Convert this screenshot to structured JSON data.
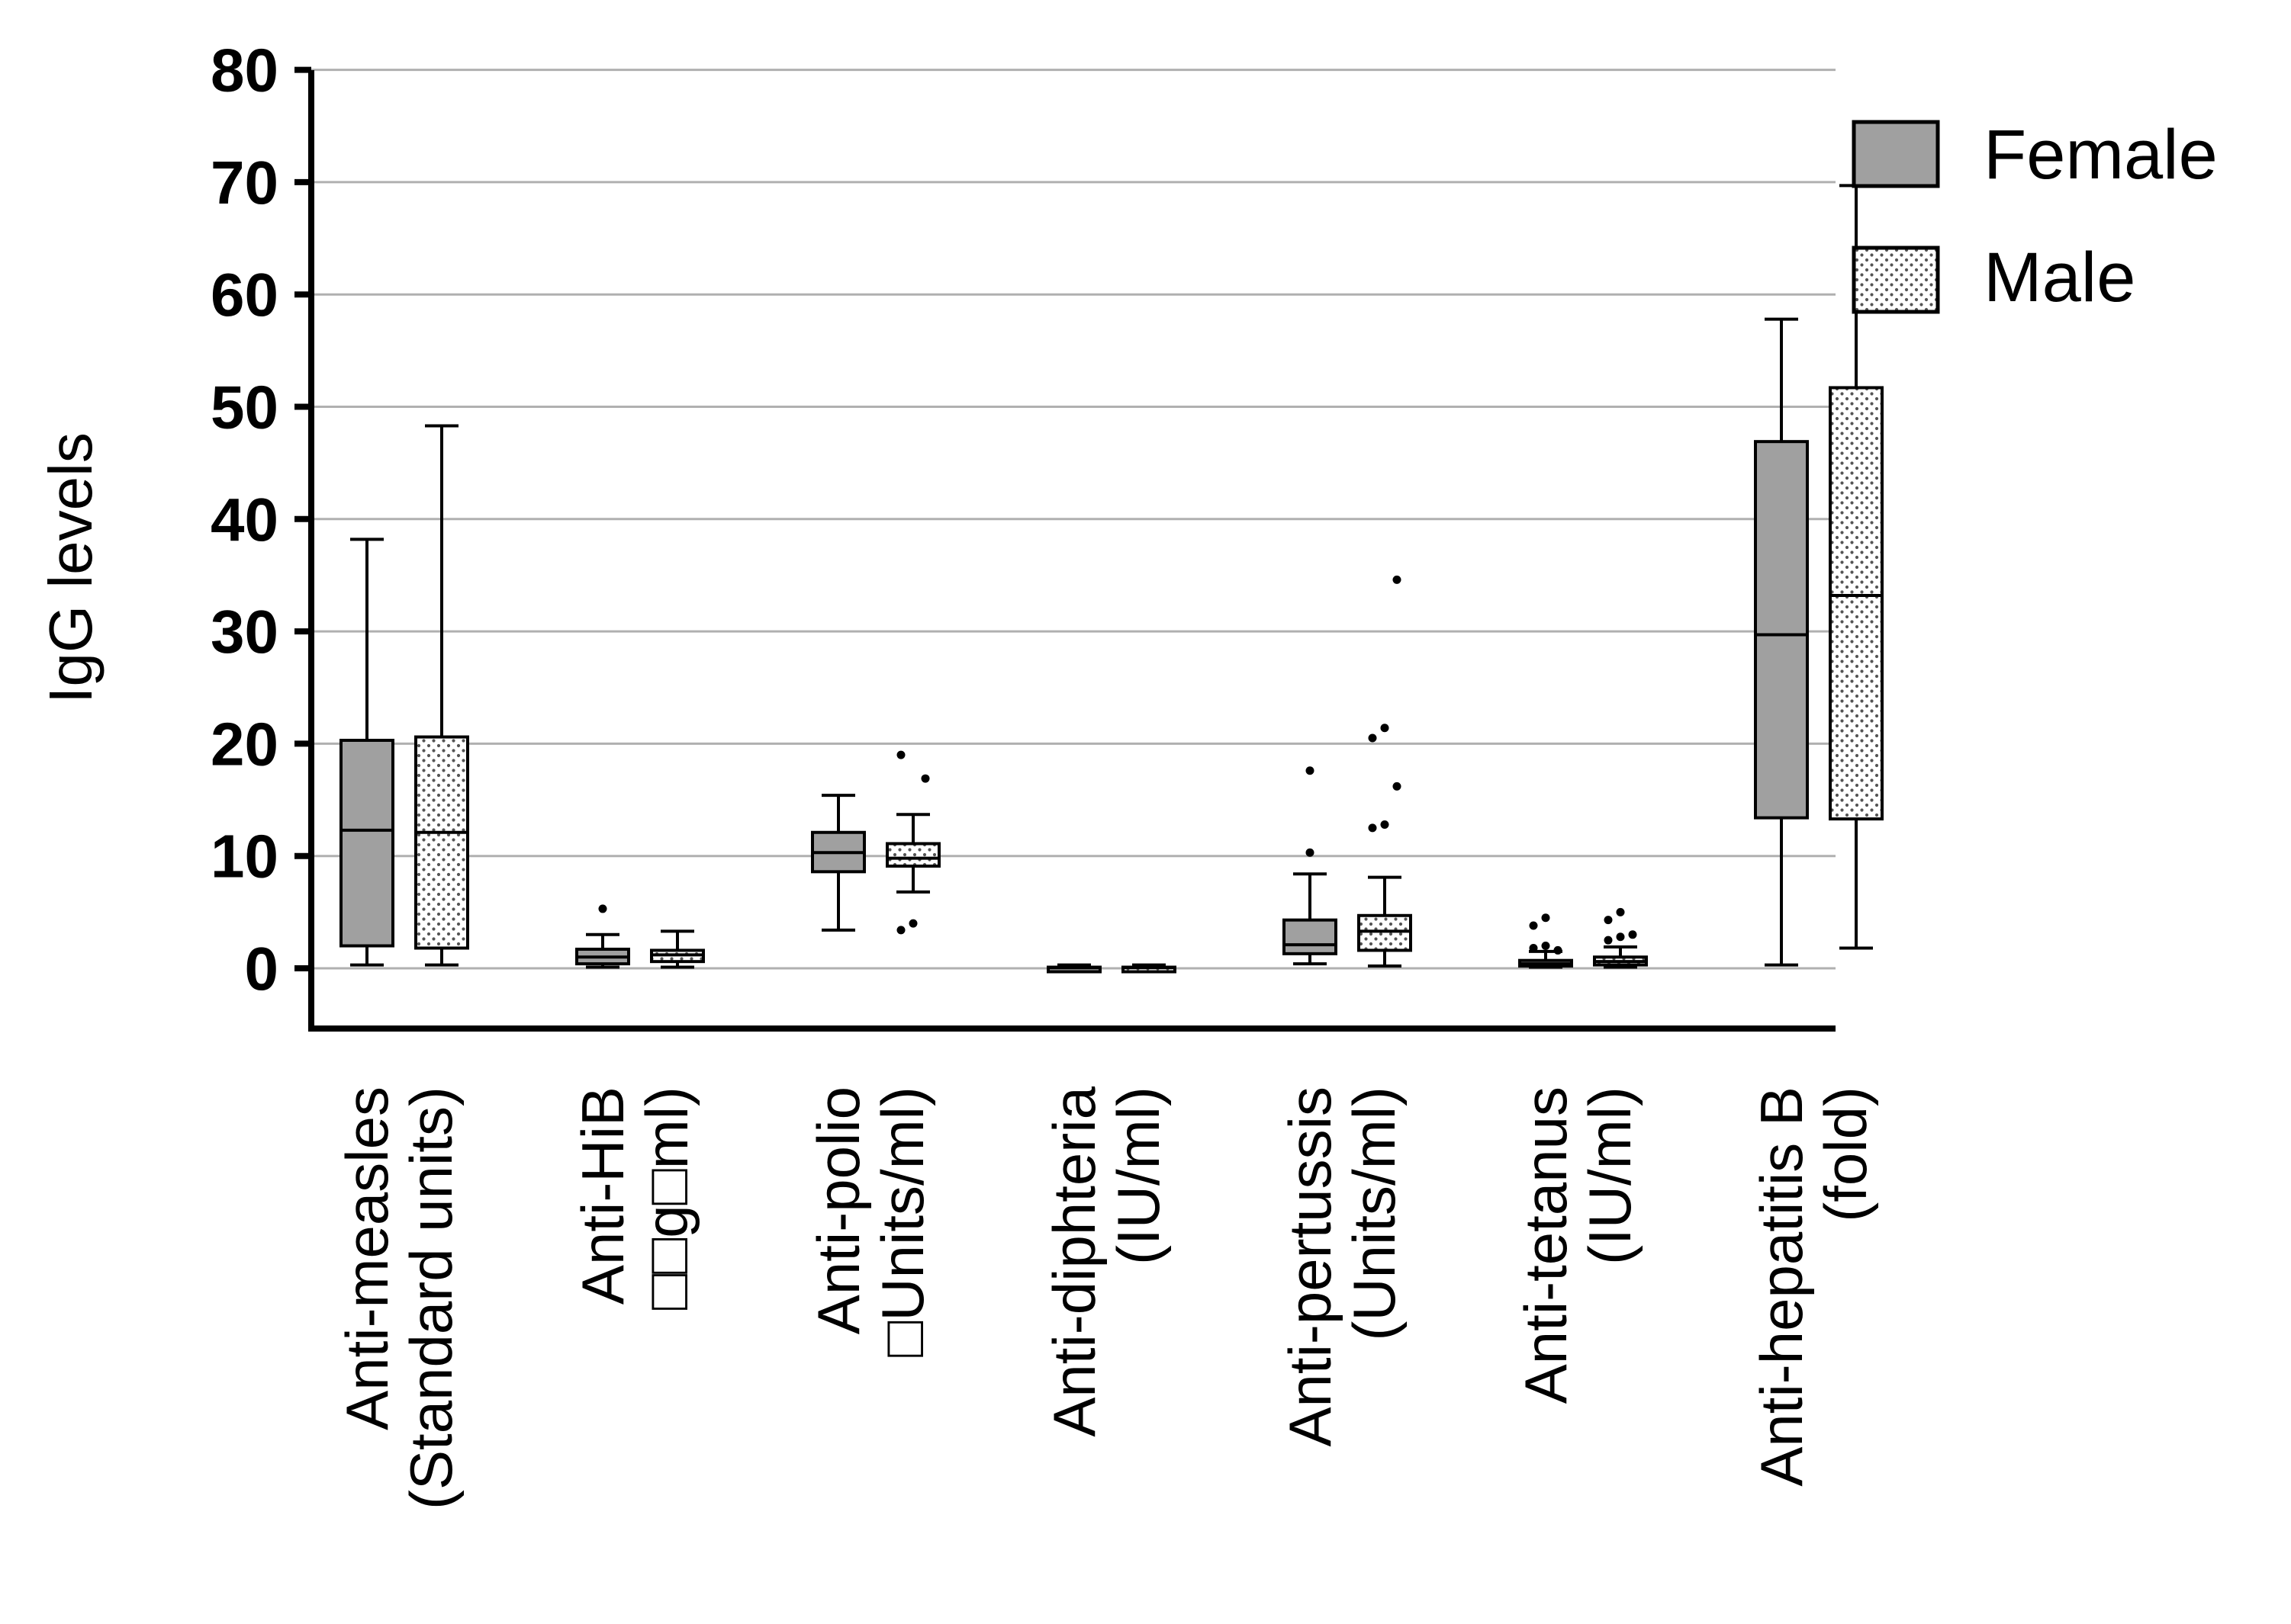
{
  "chart_data": {
    "type": "box",
    "ylabel": "IgG levels",
    "ylim": [
      -5,
      80
    ],
    "yticks": [
      0,
      10,
      20,
      30,
      40,
      50,
      60,
      70,
      80
    ],
    "ytick_labels": [
      "0",
      "10",
      "20",
      "30",
      "40",
      "50",
      "60",
      "70",
      "80"
    ],
    "grid": true,
    "legend_position": "top-right",
    "colors": {
      "female": "#a0a0a0",
      "male_fill": "#ffffff",
      "male_dots": "#555555",
      "axis": "#000000",
      "grid": "#b0b0b0"
    },
    "categories": [
      {
        "line1": "Anti-measles",
        "line2": "(Standard units)"
      },
      {
        "line1": "Anti-HiB",
        "line2": "□□g□ml)"
      },
      {
        "line1": "Anti-polio",
        "line2": "□Units/ml)"
      },
      {
        "line1": "Anti-diphteria",
        "line2": "(IU/ml)"
      },
      {
        "line1": "Anti-pertussis",
        "line2": "(Units/ml)"
      },
      {
        "line1": "Anti-tetanus",
        "line2": "(IU/ml)"
      },
      {
        "line1": "Anti-hepatitis B",
        "line2": "(fold)"
      }
    ],
    "series": [
      {
        "name": "Female",
        "boxes": [
          {
            "min": 0.3,
            "q1": 2.0,
            "median": 12.3,
            "q3": 20.3,
            "max": 38.2,
            "outliers": []
          },
          {
            "min": 0.1,
            "q1": 0.4,
            "median": 1.0,
            "q3": 1.7,
            "max": 3.0,
            "outliers": [
              5.3
            ]
          },
          {
            "min": 3.4,
            "q1": 8.6,
            "median": 10.3,
            "q3": 12.1,
            "max": 15.4,
            "outliers": []
          },
          {
            "min": 0.0,
            "q1": 0.0,
            "median": 0.05,
            "q3": 0.1,
            "max": 0.3,
            "outliers": []
          },
          {
            "min": 0.4,
            "q1": 1.3,
            "median": 2.1,
            "q3": 4.3,
            "max": 8.4,
            "outliers": [
              10.3,
              17.6
            ]
          },
          {
            "min": 0.1,
            "q1": 0.2,
            "median": 0.4,
            "q3": 0.7,
            "max": 1.5,
            "outliers": [
              1.8,
              2.0,
              1.6,
              3.8,
              4.5
            ]
          },
          {
            "min": 0.3,
            "q1": 13.4,
            "median": 29.7,
            "q3": 46.9,
            "max": 57.8,
            "outliers": []
          }
        ]
      },
      {
        "name": "Male",
        "boxes": [
          {
            "min": 0.3,
            "q1": 1.8,
            "median": 12.1,
            "q3": 20.6,
            "max": 48.3,
            "outliers": []
          },
          {
            "min": 0.1,
            "q1": 0.6,
            "median": 1.2,
            "q3": 1.6,
            "max": 3.3,
            "outliers": []
          },
          {
            "min": 6.8,
            "q1": 9.1,
            "median": 9.8,
            "q3": 11.1,
            "max": 13.7,
            "outliers": [
              3.4,
              4.0,
              16.9,
              19.0
            ]
          },
          {
            "min": 0.0,
            "q1": 0.0,
            "median": 0.05,
            "q3": 0.1,
            "max": 0.3,
            "outliers": []
          },
          {
            "min": 0.2,
            "q1": 1.6,
            "median": 3.3,
            "q3": 4.7,
            "max": 8.1,
            "outliers": [
              12.5,
              12.8,
              16.2,
              20.5,
              21.4,
              34.6
            ]
          },
          {
            "min": 0.1,
            "q1": 0.3,
            "median": 0.6,
            "q3": 1.0,
            "max": 1.9,
            "outliers": [
              2.5,
              2.8,
              3.0,
              4.3,
              5.0
            ]
          },
          {
            "min": 1.8,
            "q1": 13.3,
            "median": 33.2,
            "q3": 51.7,
            "max": 69.7,
            "outliers": []
          }
        ]
      }
    ]
  }
}
